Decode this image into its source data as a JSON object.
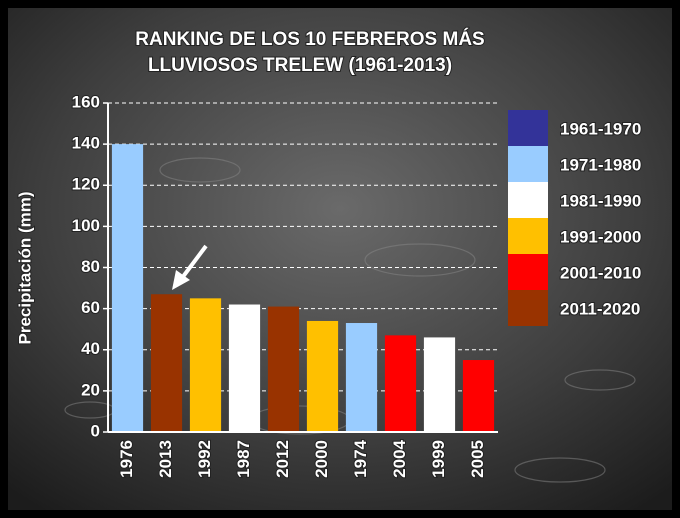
{
  "chart_data": {
    "type": "bar",
    "title": [
      "RANKING  DE LOS 10 FEBREROS  MÁS",
      "LLUVIOSOS  TRELEW  (1961-2013)"
    ],
    "y_label": "Precipitación (mm)",
    "categories": [
      "1976",
      "2013",
      "1992",
      "1987",
      "2012",
      "2000",
      "1974",
      "2004",
      "1999",
      "2005"
    ],
    "values": [
      140,
      67,
      65,
      62,
      61,
      54,
      53,
      47,
      46,
      35
    ],
    "colors": [
      "#99ccff",
      "#993300",
      "#ffc000",
      "#ffffff",
      "#993300",
      "#ffc000",
      "#99ccff",
      "#ff0000",
      "#ffffff",
      "#ff0000"
    ],
    "legend": [
      {
        "name": "1961-1970",
        "color": "#333399"
      },
      {
        "name": "1971-1980",
        "color": "#99ccff"
      },
      {
        "name": "1981-1990",
        "color": "#ffffff"
      },
      {
        "name": "1991-2000",
        "color": "#ffc000"
      },
      {
        "name": "2001-2010",
        "color": "#ff0000"
      },
      {
        "name": "2011-2020",
        "color": "#993300"
      }
    ],
    "ylim": [
      0,
      160
    ],
    "yticks": [
      0,
      20,
      40,
      60,
      80,
      100,
      120,
      140,
      160
    ],
    "grid": true
  }
}
